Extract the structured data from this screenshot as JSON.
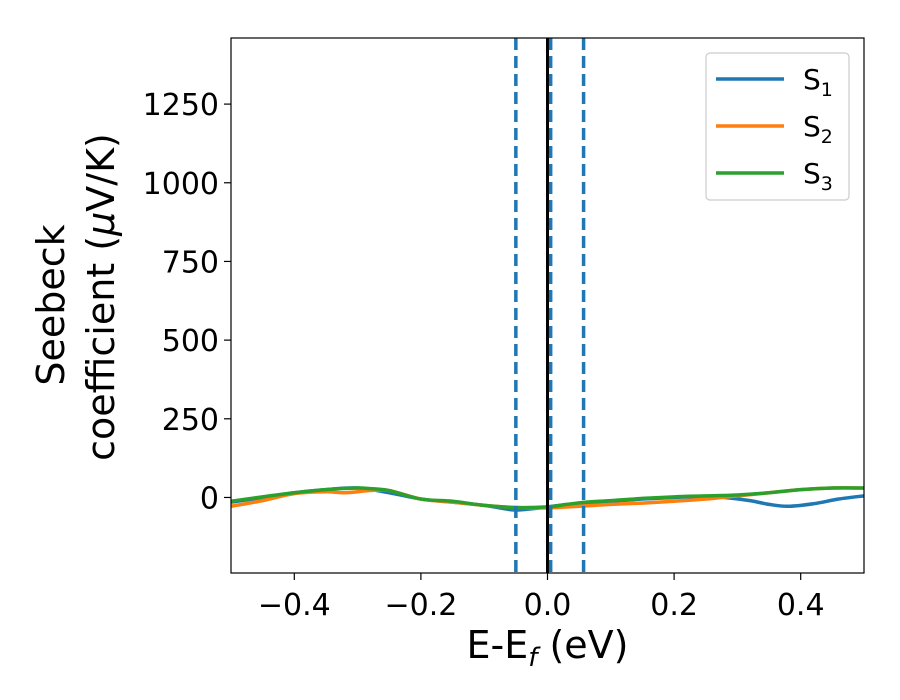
{
  "chart_data": {
    "type": "line",
    "title": "",
    "xlabel": {
      "main": "E-E",
      "sub": "f",
      "unit": " (eV)"
    },
    "ylabel": {
      "line1": "Seebeck",
      "line2_prefix": "coefficient  (",
      "mu": "μ",
      "line2_suffix": "V/K)"
    },
    "xlim": [
      -0.5,
      0.5
    ],
    "ylim": [
      -240,
      1460
    ],
    "xticks": [
      -0.4,
      -0.2,
      0.0,
      0.2,
      0.4
    ],
    "xtick_labels": [
      "−0.4",
      "−0.2",
      "0.0",
      "0.2",
      "0.4"
    ],
    "yticks": [
      0,
      250,
      500,
      750,
      1000,
      1250
    ],
    "ytick_labels": [
      "0",
      "250",
      "500",
      "750",
      "1000",
      "1250"
    ],
    "grid": false,
    "legend_position": "top-right",
    "reference_lines": {
      "solid_vertical": {
        "x": 0.0,
        "color": "#000000"
      },
      "dashed_vertical": {
        "x": [
          -0.05,
          0.005,
          0.057
        ],
        "color": "#1f77b4"
      }
    },
    "series": [
      {
        "name": "S",
        "sub": "1",
        "color": "#1f77b4",
        "x": [
          -0.5,
          -0.45,
          -0.4,
          -0.35,
          -0.3,
          -0.25,
          -0.2,
          -0.15,
          -0.1,
          -0.07,
          -0.05,
          -0.02,
          0.0,
          0.02,
          0.05,
          0.1,
          0.15,
          0.2,
          0.25,
          0.28,
          0.32,
          0.35,
          0.38,
          0.42,
          0.46,
          0.5
        ],
        "values": [
          -15,
          0,
          15,
          25,
          30,
          15,
          -5,
          -15,
          -25,
          -35,
          -40,
          -35,
          -30,
          -25,
          -20,
          -12,
          -5,
          0,
          3,
          0,
          -10,
          -22,
          -28,
          -20,
          -5,
          5
        ]
      },
      {
        "name": "S",
        "sub": "2",
        "color": "#ff7f0e",
        "x": [
          -0.5,
          -0.45,
          -0.4,
          -0.35,
          -0.32,
          -0.28,
          -0.25,
          -0.2,
          -0.15,
          -0.1,
          -0.05,
          0.0,
          0.05,
          0.1,
          0.15,
          0.2,
          0.25,
          0.3,
          0.35,
          0.4,
          0.45,
          0.5
        ],
        "values": [
          -28,
          -10,
          12,
          18,
          15,
          22,
          22,
          -5,
          -15,
          -25,
          -32,
          -33,
          -28,
          -22,
          -18,
          -12,
          -5,
          5,
          15,
          25,
          30,
          30
        ]
      },
      {
        "name": "S",
        "sub": "3",
        "color": "#2ca02c",
        "x": [
          -0.5,
          -0.45,
          -0.4,
          -0.35,
          -0.3,
          -0.28,
          -0.25,
          -0.2,
          -0.15,
          -0.1,
          -0.05,
          0.0,
          0.03,
          0.06,
          0.1,
          0.15,
          0.2,
          0.25,
          0.3,
          0.35,
          0.4,
          0.45,
          0.5
        ],
        "values": [
          -12,
          2,
          15,
          25,
          30,
          28,
          22,
          -5,
          -12,
          -25,
          -32,
          -30,
          -22,
          -15,
          -10,
          -3,
          2,
          5,
          8,
          15,
          25,
          30,
          30
        ]
      }
    ]
  }
}
